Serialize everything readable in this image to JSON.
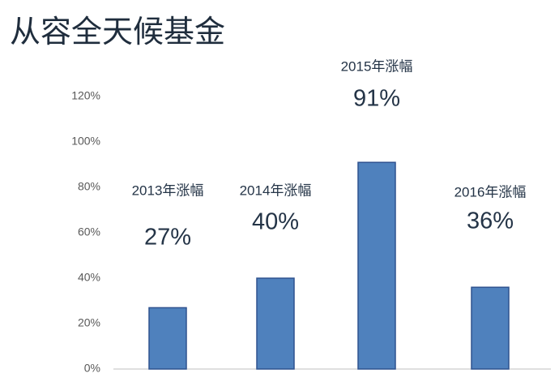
{
  "chart_data": {
    "type": "bar",
    "title": "从容全天候基金",
    "categories": [
      "2013年涨幅",
      "2014年涨幅",
      "2015年涨幅",
      "2016年涨幅"
    ],
    "values": [
      27,
      40,
      91,
      36
    ],
    "value_labels": [
      "27%",
      "40%",
      "91%",
      "36%"
    ],
    "color": "#4f81bd",
    "ylim": [
      0,
      120
    ],
    "yticks": [
      {
        "value": 0,
        "label": "0%"
      },
      {
        "value": 20,
        "label": "20%"
      },
      {
        "value": 40,
        "label": "40%"
      },
      {
        "value": 60,
        "label": "60%"
      },
      {
        "value": 80,
        "label": "80%"
      },
      {
        "value": 100,
        "label": "100%"
      },
      {
        "value": 120,
        "label": "120%"
      }
    ],
    "grid": false
  }
}
